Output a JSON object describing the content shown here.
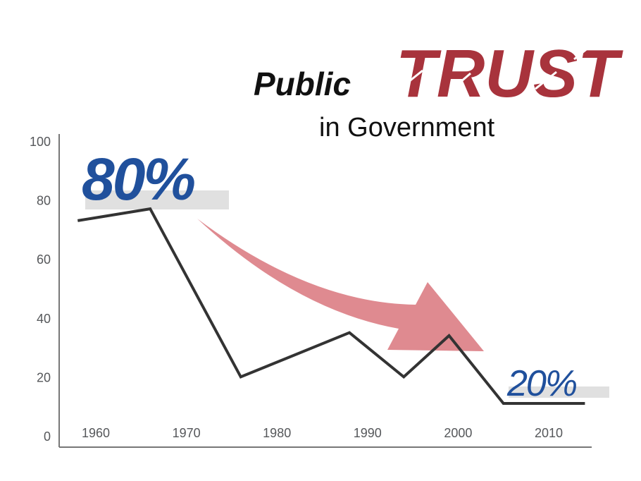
{
  "title": {
    "word1": "Public",
    "word2": "TRUST",
    "subtitle": "in Government"
  },
  "chart_data": {
    "type": "line",
    "title": "Public TRUST in Government",
    "xlabel": "",
    "ylabel": "",
    "xlim": [
      1956,
      2016
    ],
    "ylim": [
      0,
      100
    ],
    "x_ticks": [
      1960,
      1970,
      1980,
      1990,
      2000,
      2010
    ],
    "y_ticks": [
      0,
      20,
      40,
      60,
      80,
      100
    ],
    "grid": false,
    "series": [
      {
        "x": [
          1958,
          1966,
          1976,
          1988,
          1994,
          1999,
          2005,
          2014
        ],
        "values": [
          73,
          77,
          20,
          35,
          20,
          34,
          11,
          11
        ]
      }
    ],
    "annotations": {
      "high_label": "80%",
      "low_label": "20%"
    },
    "colors": {
      "line": "#333333",
      "arrow": "#df8a90",
      "callout": "#20509c",
      "trust": "#a8333c",
      "highlight": "#e0e0e0"
    }
  }
}
